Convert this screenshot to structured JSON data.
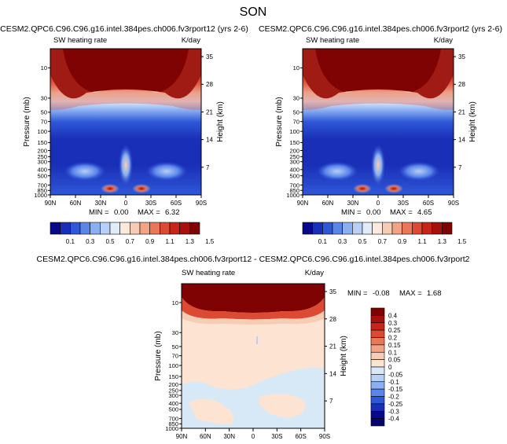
{
  "page_title": "SON",
  "chart_data": [
    {
      "type": "contour",
      "title": "CESM2.QPC6.C96.C96.g16.intel.384pes.ch006.fv3rport12 (yrs 2-6)",
      "left_label": "SW heating rate",
      "units": "K/day",
      "ylabel": "Pressure (mb)",
      "ylabel_right": "Height (km)",
      "x_ticks": [
        "90N",
        "60N",
        "30N",
        "0",
        "30S",
        "60S",
        "90S"
      ],
      "y_ticks": [
        "10",
        "30",
        "50",
        "70",
        "100",
        "150",
        "200",
        "250",
        "300",
        "400",
        "500",
        "700",
        "850",
        "1000"
      ],
      "y_ticks_right": [
        "35",
        "28",
        "21",
        "14",
        "7"
      ],
      "min": "0.00",
      "max": "6.32",
      "min_label": "MIN =",
      "max_label": "MAX ="
    },
    {
      "type": "contour",
      "title": "CESM2.QPC6.C96.C96.g16.intel.384pes.ch006.fv3rport2 (yrs 2-6)",
      "left_label": "SW heating rate",
      "units": "K/day",
      "ylabel": "Pressure (mb)",
      "ylabel_right": "Height (km)",
      "x_ticks": [
        "90N",
        "60N",
        "30N",
        "0",
        "30S",
        "60S",
        "90S"
      ],
      "y_ticks": [
        "10",
        "30",
        "50",
        "70",
        "100",
        "150",
        "200",
        "250",
        "300",
        "400",
        "500",
        "700",
        "850",
        "1000"
      ],
      "y_ticks_right": [
        "35",
        "28",
        "21",
        "14",
        "7"
      ],
      "min": "0.00",
      "max": "4.65",
      "min_label": "MIN =",
      "max_label": "MAX ="
    },
    {
      "type": "contour",
      "title": "CESM2.QPC6.C96.C96.g16.intel.384pes.ch006.fv3rport12 - CESM2.QPC6.C96.C96.g16.intel.384pes.ch006.fv3rport2",
      "left_label": "SW heating rate",
      "units": "K/day",
      "ylabel": "Pressure (mb)",
      "ylabel_right": "Height (km)",
      "x_ticks": [
        "90N",
        "60N",
        "30N",
        "0",
        "30S",
        "60S",
        "90S"
      ],
      "y_ticks": [
        "10",
        "30",
        "50",
        "70",
        "100",
        "150",
        "200",
        "250",
        "300",
        "400",
        "500",
        "700",
        "850",
        "1000"
      ],
      "y_ticks_right": [
        "35",
        "28",
        "21",
        "14",
        "7"
      ],
      "min": "-0.08",
      "max": "1.68",
      "min_label": "MIN =",
      "max_label": "MAX ="
    }
  ],
  "colorbar_top": {
    "labels": [
      "0.1",
      "0.3",
      "0.5",
      "0.7",
      "0.9",
      "1.1",
      "1.3",
      "1.5"
    ],
    "colors": [
      "#08088c",
      "#1a2fb8",
      "#2f58d8",
      "#5a86ea",
      "#8ab0f2",
      "#b8d0f5",
      "#e2ecf9",
      "#fbe9dd",
      "#f6cdb4",
      "#f1a384",
      "#ea7758",
      "#dd4a33",
      "#c82518",
      "#a8110b",
      "#800303"
    ]
  },
  "colorbar_diff": {
    "labels": [
      "0.4",
      "0.3",
      "0.25",
      "0.2",
      "0.15",
      "0.1",
      "0.05",
      "0",
      "-0.05",
      "-0.1",
      "-0.15",
      "-0.2",
      "-0.25",
      "-0.3",
      "-0.4"
    ],
    "colors": [
      "#800303",
      "#a8110b",
      "#c82518",
      "#dd4a33",
      "#ea7758",
      "#f1a384",
      "#f6cdb4",
      "#fde4d2",
      "#d7e8f7",
      "#b8d0f5",
      "#8ab0f2",
      "#5a86ea",
      "#2f58d8",
      "#1a2fb8",
      "#08088c",
      "#05056e"
    ]
  }
}
